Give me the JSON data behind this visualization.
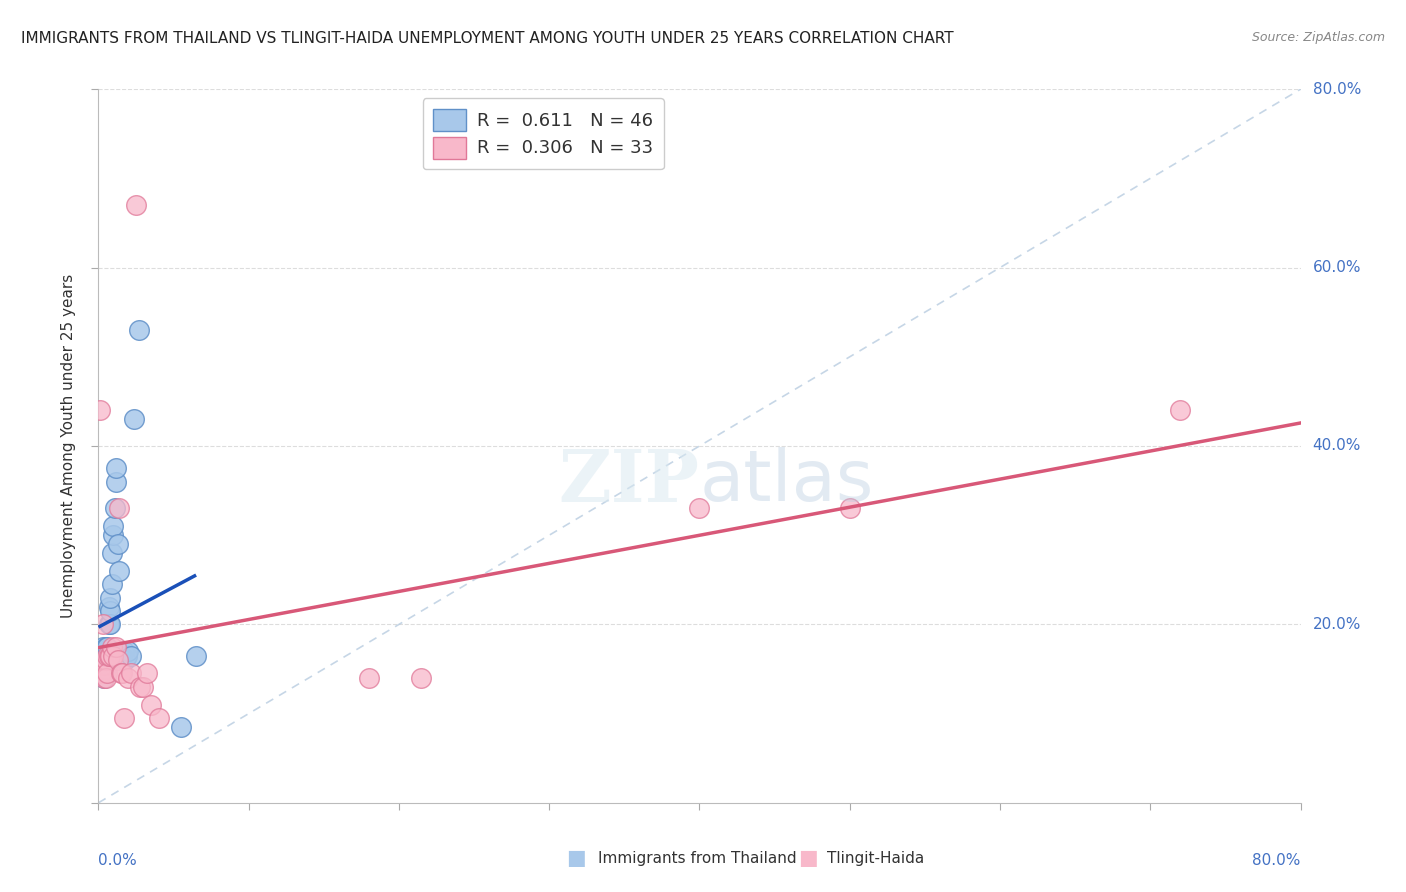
{
  "title": "IMMIGRANTS FROM THAILAND VS TLINGIT-HAIDA UNEMPLOYMENT AMONG YOUTH UNDER 25 YEARS CORRELATION CHART",
  "source": "Source: ZipAtlas.com",
  "ylabel": "Unemployment Among Youth under 25 years",
  "legend1_r": "0.611",
  "legend1_n": "46",
  "legend2_r": "0.306",
  "legend2_n": "33",
  "blue_color": "#a8c8ea",
  "pink_color": "#f8b8ca",
  "blue_edge": "#6090c8",
  "pink_edge": "#e07898",
  "trend_blue": "#1a50b8",
  "trend_pink": "#d85878",
  "diag_color": "#b8cce0",
  "blue_x": [
    0.001,
    0.001,
    0.001,
    0.002,
    0.002,
    0.002,
    0.002,
    0.003,
    0.003,
    0.003,
    0.003,
    0.004,
    0.004,
    0.004,
    0.004,
    0.005,
    0.005,
    0.005,
    0.006,
    0.006,
    0.006,
    0.007,
    0.007,
    0.008,
    0.008,
    0.008,
    0.009,
    0.009,
    0.01,
    0.01,
    0.011,
    0.012,
    0.012,
    0.013,
    0.014,
    0.015,
    0.016,
    0.017,
    0.018,
    0.019,
    0.02,
    0.022,
    0.024,
    0.027,
    0.055,
    0.065
  ],
  "blue_y": [
    0.145,
    0.155,
    0.165,
    0.145,
    0.15,
    0.16,
    0.17,
    0.145,
    0.155,
    0.165,
    0.175,
    0.14,
    0.15,
    0.16,
    0.17,
    0.15,
    0.16,
    0.175,
    0.155,
    0.165,
    0.175,
    0.2,
    0.22,
    0.2,
    0.215,
    0.23,
    0.245,
    0.28,
    0.3,
    0.31,
    0.33,
    0.36,
    0.375,
    0.29,
    0.26,
    0.165,
    0.165,
    0.17,
    0.16,
    0.165,
    0.17,
    0.165,
    0.43,
    0.53,
    0.085,
    0.165
  ],
  "pink_x": [
    0.001,
    0.002,
    0.003,
    0.003,
    0.004,
    0.004,
    0.005,
    0.005,
    0.006,
    0.006,
    0.007,
    0.008,
    0.009,
    0.01,
    0.012,
    0.013,
    0.014,
    0.015,
    0.016,
    0.017,
    0.02,
    0.022,
    0.025,
    0.028,
    0.03,
    0.032,
    0.035,
    0.04,
    0.18,
    0.215,
    0.4,
    0.5,
    0.72
  ],
  "pink_y": [
    0.44,
    0.145,
    0.2,
    0.145,
    0.155,
    0.14,
    0.16,
    0.14,
    0.165,
    0.145,
    0.165,
    0.165,
    0.175,
    0.165,
    0.175,
    0.16,
    0.33,
    0.145,
    0.145,
    0.095,
    0.14,
    0.145,
    0.67,
    0.13,
    0.13,
    0.145,
    0.11,
    0.095,
    0.14,
    0.14,
    0.33,
    0.33,
    0.44
  ],
  "blue_trend_x0": 0.0,
  "blue_trend_x1": 0.065,
  "pink_trend_x0": 0.0,
  "pink_trend_x1": 0.8,
  "xlim": [
    0.0,
    0.8
  ],
  "ylim": [
    0.0,
    0.8
  ],
  "xticks": [
    0.0,
    0.1,
    0.2,
    0.3,
    0.4,
    0.5,
    0.6,
    0.7,
    0.8
  ],
  "yticks": [
    0.0,
    0.2,
    0.4,
    0.6,
    0.8
  ],
  "right_ytick_labels": [
    "20.0%",
    "40.0%",
    "60.0%",
    "80.0%"
  ],
  "right_ytick_vals": [
    0.2,
    0.4,
    0.6,
    0.8
  ],
  "bg_color": "#ffffff",
  "grid_color": "#dddddd",
  "title_fontsize": 11,
  "axis_label_color": "#4472c4",
  "text_color": "#333333",
  "source_color": "#888888"
}
